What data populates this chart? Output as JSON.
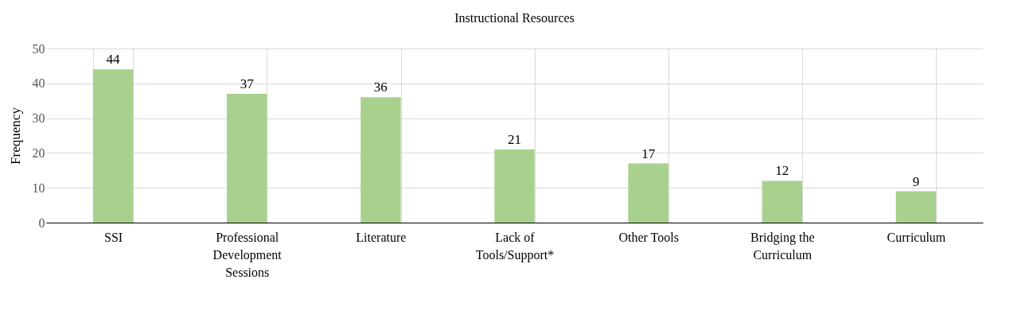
{
  "chart_data": {
    "type": "bar",
    "title": "Instructional Resources",
    "ylabel": "Frequency",
    "categories": [
      "SSI",
      "Professional Development Sessions",
      "Literature",
      "Lack of Tools/Support*",
      "Other Tools",
      "Bridging the Curriculum",
      "Curriculum"
    ],
    "values": [
      44,
      37,
      36,
      21,
      17,
      12,
      9
    ],
    "color": "#a9d18e",
    "ylim": [
      0,
      50
    ],
    "yticks": [
      0,
      10,
      20,
      30,
      40,
      50
    ],
    "grid": true,
    "data_labels": true
  }
}
